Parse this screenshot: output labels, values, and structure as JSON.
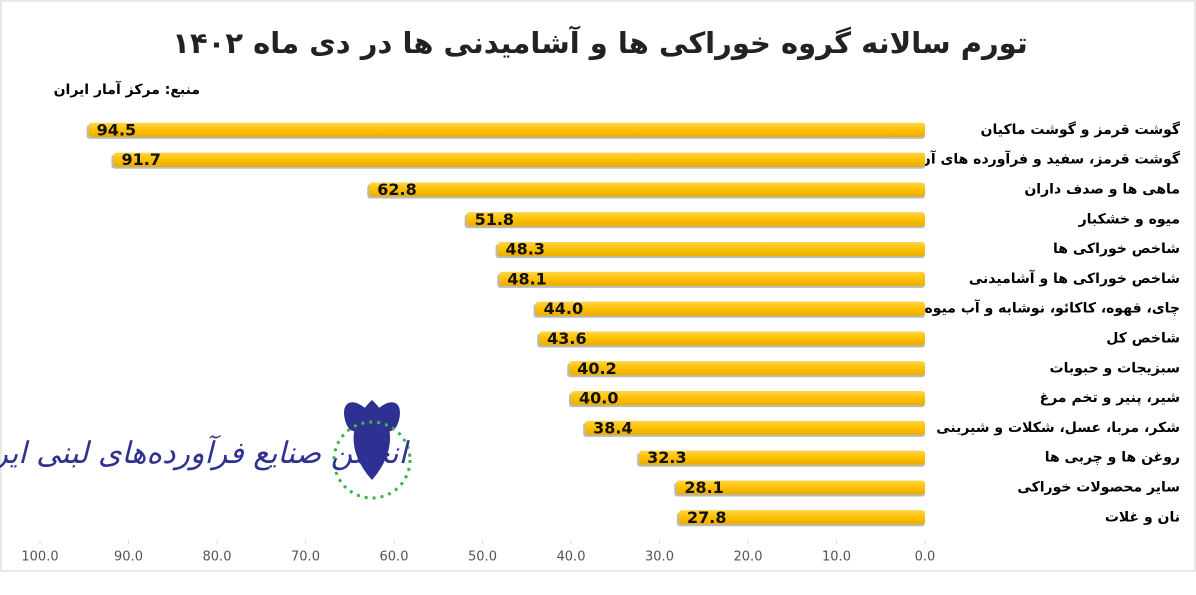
{
  "chart_data": {
    "type": "barh",
    "title": "تورم سالانه گروه خوراکی ها و آشامیدنی ها در دی ماه ۱۴۰۲",
    "source": "منبع: مرکز آمار ایران",
    "logo_text": "انجمن صنایع فرآورده‌های لبنی ایران",
    "categories": [
      "گوشت قرمز و گوشت ماکیان",
      "گوشت قرمز، سفید و فرآورده های آن",
      "ماهی ها و صدف داران",
      "میوه و خشکبار",
      "شاخص خوراکی ها",
      "شاخص خوراکی ها و  آشامیدنی",
      "چای، قهوه، کاکائو، نوشابه و  آب میوه",
      "شاخص کل",
      "سبزیجات و حبوبات",
      "شیر، پنیر و تخم مرغ",
      "شکر، مربا، عسل، شکلات و شیرینی",
      "روغن ها و چربی ها",
      "سایر محصولات خوراکی",
      "نان و غلات"
    ],
    "values": [
      94.5,
      91.7,
      62.8,
      51.8,
      48.3,
      48.1,
      44.0,
      43.6,
      40.2,
      40.0,
      38.4,
      32.3,
      28.1,
      27.8
    ],
    "value_labels": [
      "94.5",
      "91.7",
      "62.8",
      "51.8",
      "48.3",
      "48.1",
      "44.0",
      "43.6",
      "40.2",
      "40.0",
      "38.4",
      "32.3",
      "28.1",
      "27.8"
    ],
    "color": "#ffc000",
    "xlim": [
      0,
      100
    ],
    "xreversed": true,
    "xticks": [
      {
        "value": 100,
        "label": "100.0"
      },
      {
        "value": 90,
        "label": "90.0"
      },
      {
        "value": 80,
        "label": "80.0"
      },
      {
        "value": 70,
        "label": "70.0"
      },
      {
        "value": 60,
        "label": "60.0"
      },
      {
        "value": 50,
        "label": "50.0"
      },
      {
        "value": 40,
        "label": "40.0"
      },
      {
        "value": 30,
        "label": "30.0"
      },
      {
        "value": 20,
        "label": "20.0"
      },
      {
        "value": 10,
        "label": "10.0"
      },
      {
        "value": 0,
        "label": "0.0"
      }
    ]
  }
}
